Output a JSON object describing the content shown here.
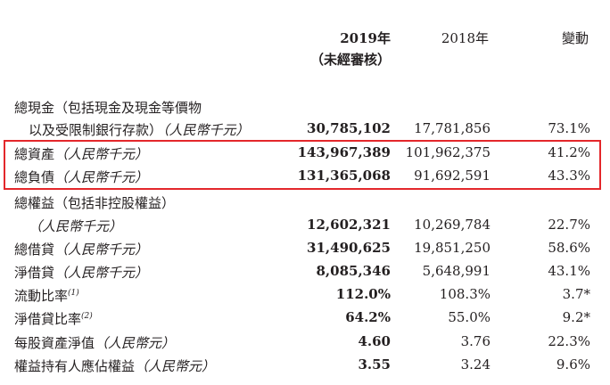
{
  "header": {
    "col_2019": "2019年",
    "col_2019_sub": "（未經審核）",
    "col_2018": "2018年",
    "col_change": "變動"
  },
  "rows": [
    {
      "label_a": "總現金（包括現金及現金等價物",
      "label_b": "以及受限制銀行存款）",
      "unit": "（人民幣千元）",
      "v2019": "30,785,102",
      "v2018": "17,781,856",
      "change": "73.1%"
    },
    {
      "label": "總資產",
      "unit": "（人民幣千元）",
      "v2019": "143,967,389",
      "v2018": "101,962,375",
      "change": "41.2%"
    },
    {
      "label": "總負債",
      "unit": "（人民幣千元）",
      "v2019": "131,365,068",
      "v2018": "91,692,591",
      "change": "43.3%"
    },
    {
      "label_a": "總權益（包括非控股權益）",
      "unit": "（人民幣千元）",
      "v2019": "12,602,321",
      "v2018": "10,269,784",
      "change": "22.7%"
    },
    {
      "label": "總借貸",
      "unit": "（人民幣千元）",
      "v2019": "31,490,625",
      "v2018": "19,851,250",
      "change": "58.6%"
    },
    {
      "label": "淨借貸",
      "unit": "（人民幣千元）",
      "v2019": "8,085,346",
      "v2018": "5,648,991",
      "change": "43.1%"
    },
    {
      "label": "流動比率",
      "note": "(1)",
      "v2019": "112.0%",
      "v2018": "108.3%",
      "change": "3.7*"
    },
    {
      "label": "淨借貸比率",
      "note": "(2)",
      "v2019": "64.2%",
      "v2018": "55.0%",
      "change": "9.2*"
    },
    {
      "label": "每股資產淨值",
      "unit": "（人民幣元）",
      "v2019": "4.60",
      "v2018": "3.76",
      "change": "22.3%"
    },
    {
      "label": "權益持有人應佔權益",
      "unit": "（人民幣元）",
      "v2019": "3.55",
      "v2018": "3.24",
      "change": "9.6%"
    }
  ],
  "highlight_color": "#e3272b"
}
